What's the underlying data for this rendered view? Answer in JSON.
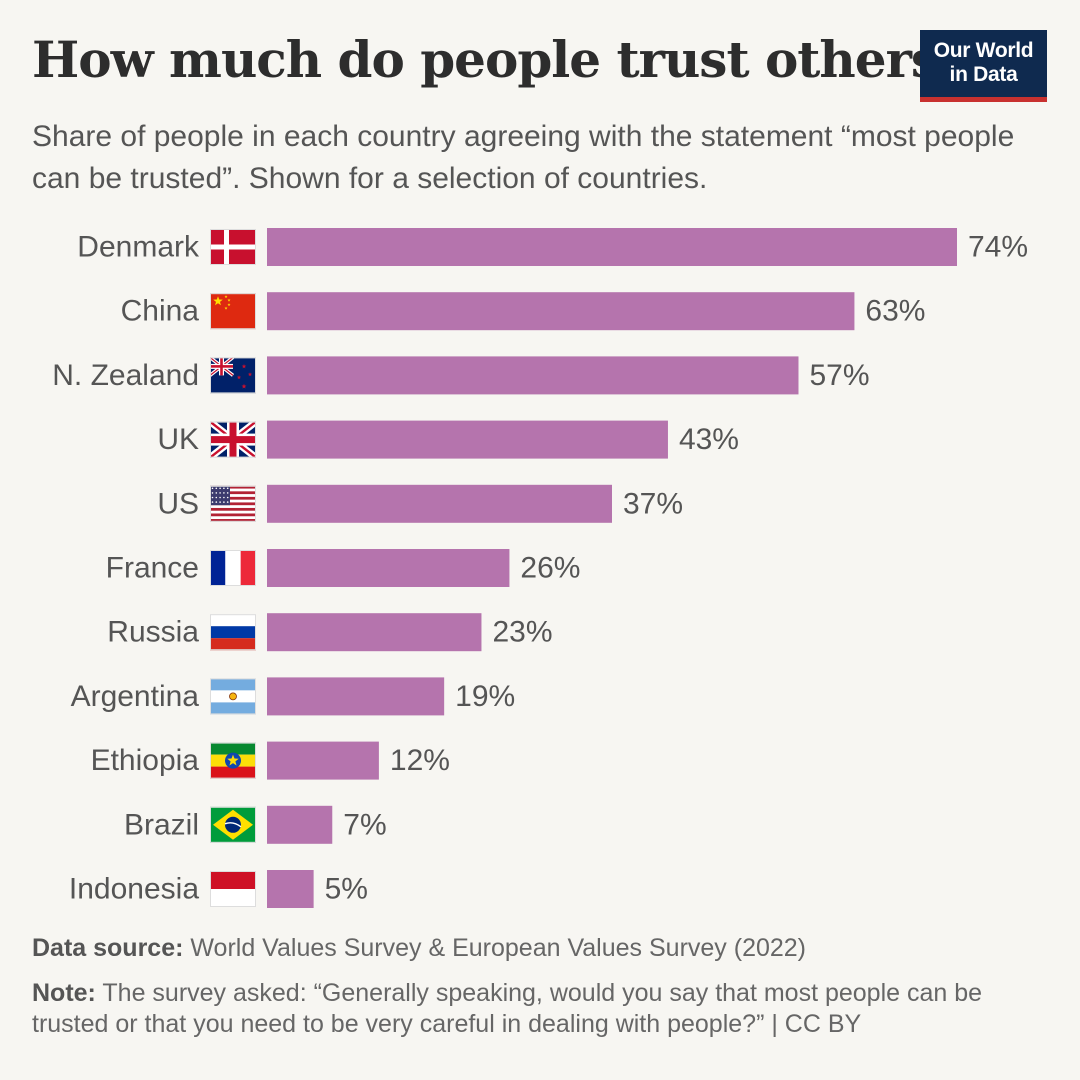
{
  "header": {
    "title": "How much do people trust others?",
    "subtitle": "Share of people in each country agreeing with the statement “most people can be trusted”. Shown for a selection of countries.",
    "logo_line1": "Our World",
    "logo_line2": "in Data"
  },
  "footer": {
    "source_label": "Data source:",
    "source_text": "World Values Survey & European Values Survey (2022)",
    "note_label": "Note:",
    "note_text": "The survey asked: “Generally speaking, would you say that most people can be trusted or that you need to be very careful in dealing with people?” | CC BY"
  },
  "colors": {
    "bar": "#b574ad",
    "text": "#555555",
    "logo_bg": "#0f2a4f",
    "logo_accent": "#c8312f"
  },
  "chart_data": {
    "type": "bar",
    "orientation": "horizontal",
    "unit": "%",
    "categories": [
      "Denmark",
      "China",
      "N. Zealand",
      "UK",
      "US",
      "France",
      "Russia",
      "Argentina",
      "Ethiopia",
      "Brazil",
      "Indonesia"
    ],
    "flags": [
      "denmark-flag-icon",
      "china-flag-icon",
      "new-zealand-flag-icon",
      "uk-flag-icon",
      "us-flag-icon",
      "france-flag-icon",
      "russia-flag-icon",
      "argentina-flag-icon",
      "ethiopia-flag-icon",
      "brazil-flag-icon",
      "indonesia-flag-icon"
    ],
    "values": [
      74,
      63,
      57,
      43,
      37,
      26,
      23,
      19,
      12,
      7,
      5
    ],
    "data_labels": [
      "74%",
      "63%",
      "57%",
      "43%",
      "37%",
      "26%",
      "23%",
      "19%",
      "12%",
      "7%",
      "5%"
    ]
  }
}
